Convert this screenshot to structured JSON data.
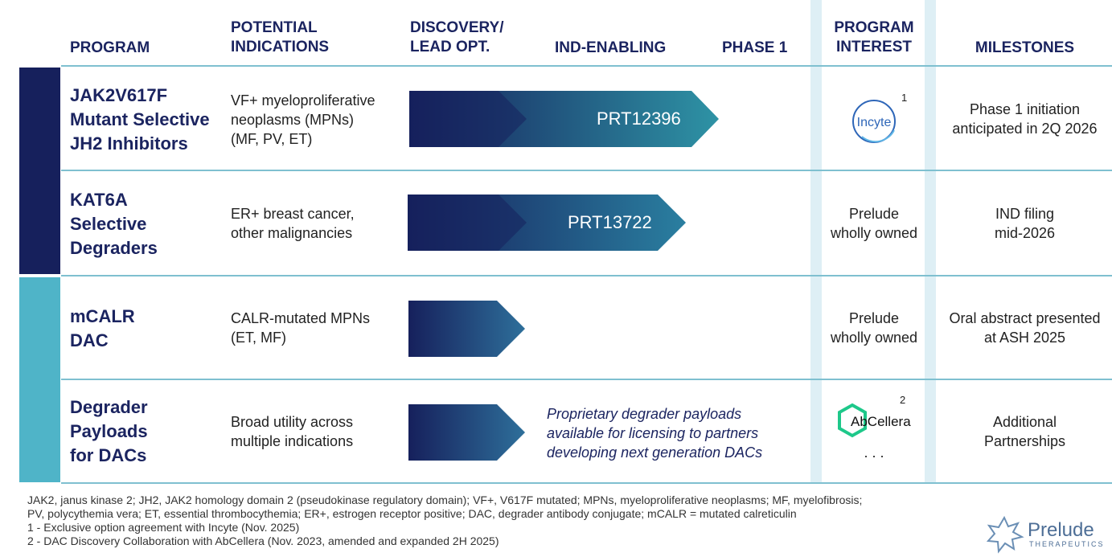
{
  "colors": {
    "navy": "#16205c",
    "teal": "#2e93a5",
    "light_teal": "#4fb4c8",
    "shade": "#deeff5"
  },
  "headers": {
    "program": "PROGRAM",
    "indications": [
      "POTENTIAL",
      "INDICATIONS"
    ],
    "discovery": [
      "DISCOVERY/",
      "LEAD OPT."
    ],
    "ind_enabling": "IND-ENABLING",
    "phase1": "PHASE 1",
    "interest": [
      "PROGRAM",
      "INTEREST"
    ],
    "milestones": "MILESTONES"
  },
  "rows": [
    {
      "program": [
        "JAK2V617F",
        "Mutant Selective",
        "JH2 Inhibitors"
      ],
      "indications": [
        "VF+ myeloproliferative",
        "neoplasms (MPNs)",
        "(MF, PV, ET)"
      ],
      "arrow_label": "PRT12396",
      "stage_progress": 0.92,
      "interest": {
        "logo": "Incyte",
        "footnote": "1"
      },
      "milestone": [
        "Phase 1 initiation",
        "anticipated in 2Q 2026"
      ]
    },
    {
      "program": [
        "KAT6A",
        "Selective",
        "Degraders"
      ],
      "indications": [
        "ER+ breast cancer,",
        "other malignancies"
      ],
      "arrow_label": "PRT13722",
      "stage_progress": 0.72,
      "interest": {
        "text": [
          "Prelude",
          "wholly owned"
        ]
      },
      "milestone": [
        "IND filing",
        "mid-2026"
      ]
    },
    {
      "program": [
        "mCALR",
        "DAC"
      ],
      "indications": [
        "CALR-mutated MPNs",
        "(ET, MF)"
      ],
      "arrow_label": "",
      "stage_progress": 0.33,
      "interest": {
        "text": [
          "Prelude",
          "wholly owned"
        ]
      },
      "milestone": [
        "Oral abstract presented",
        "at ASH 2025"
      ]
    },
    {
      "program": [
        "Degrader",
        "Payloads",
        "for DACs"
      ],
      "indications": [
        "Broad utility across",
        "multiple indications"
      ],
      "arrow_label": "",
      "stage_progress": 0.33,
      "note": [
        "Proprietary degrader payloads",
        "available for licensing to partners",
        "developing next generation DACs"
      ],
      "interest": {
        "logo": "AbCellera",
        "footnote": "2",
        "extra": ". . ."
      },
      "milestone": [
        "Additional",
        "Partnerships"
      ]
    }
  ],
  "footnotes": [
    "JAK2, janus kinase 2; JH2, JAK2 homology domain 2 (pseudokinase regulatory domain); VF+, V617F mutated; MPNs, myeloproliferative neoplasms; MF, myelofibrosis;",
    "PV, polycythemia vera; ET, essential thrombocythemia; ER+, estrogen receptor positive; DAC, degrader antibody conjugate; mCALR = mutated calreticulin",
    "1 - Exclusive option agreement with Incyte (Nov. 2025)",
    "2 - DAC Discovery Collaboration with AbCellera (Nov. 2023, amended and expanded 2H 2025)"
  ],
  "brand": {
    "name": "Prelude",
    "tagline": "THERAPEUTICS"
  }
}
